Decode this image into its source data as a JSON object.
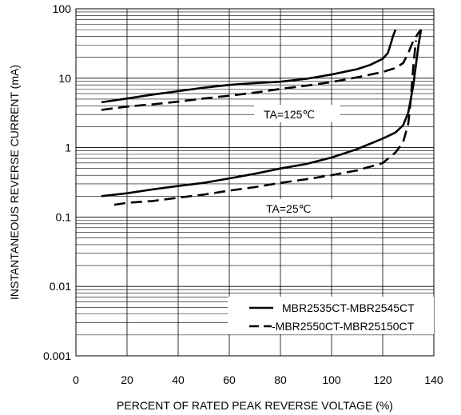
{
  "chart_data": {
    "type": "line",
    "title": "",
    "xlabel": "PERCENT OF RATED PEAK REVERSE VOLTAGE (%)",
    "ylabel": "INSTANTANEOUS REVERSE CURRENT (mA)",
    "xlim": [
      0,
      140
    ],
    "ylim": [
      0.001,
      100
    ],
    "yscale": "log",
    "x_ticks": [
      0,
      20,
      40,
      60,
      80,
      100,
      120,
      140
    ],
    "x_tick_labels": [
      "0",
      "20",
      "40",
      "60",
      "80",
      "100",
      "120",
      "140"
    ],
    "y_ticks": [
      0.001,
      0.01,
      0.1,
      1,
      10,
      100
    ],
    "y_tick_labels": [
      "0.001",
      "0.01",
      "0.1",
      "1",
      "10",
      "100"
    ],
    "grid": true,
    "legend_position": "bottom-right",
    "legend": [
      {
        "label": "MBR2535CT-MBR2545CT",
        "style": "solid"
      },
      {
        "label": "-MBR2550CT-MBR25150CT",
        "style": "dashed"
      }
    ],
    "annotations": [
      {
        "text": "TA=125℃",
        "x": 84,
        "y": 1.85
      },
      {
        "text": "TA=25℃",
        "x": 84,
        "y": 0.115
      }
    ],
    "series": [
      {
        "group": "TA=125",
        "style": "solid",
        "x": [
          10,
          20,
          30,
          40,
          50,
          60,
          70,
          80,
          90,
          100,
          110,
          115,
          120,
          122,
          123,
          124,
          125
        ],
        "y": [
          4.5,
          5.1,
          5.8,
          6.5,
          7.3,
          8.0,
          8.5,
          8.9,
          9.8,
          11.3,
          13.5,
          15.5,
          19.0,
          23.0,
          30.0,
          40.0,
          50.0
        ]
      },
      {
        "group": "TA=125",
        "style": "dashed",
        "x": [
          10,
          20,
          30,
          40,
          50,
          60,
          70,
          80,
          90,
          100,
          110,
          120,
          125,
          128,
          130,
          132,
          134,
          135
        ],
        "y": [
          3.5,
          3.9,
          4.2,
          4.6,
          5.1,
          5.6,
          6.2,
          7.0,
          7.8,
          8.8,
          10.3,
          12.3,
          14.0,
          16.5,
          23.0,
          35.0,
          45.0,
          50.0
        ]
      },
      {
        "group": "TA=25",
        "style": "solid",
        "x": [
          10,
          20,
          30,
          40,
          50,
          60,
          70,
          80,
          90,
          100,
          110,
          120,
          125,
          128,
          130,
          132,
          134,
          135
        ],
        "y": [
          0.2,
          0.22,
          0.25,
          0.28,
          0.31,
          0.36,
          0.42,
          0.5,
          0.58,
          0.72,
          0.95,
          1.35,
          1.65,
          2.1,
          3.2,
          8.0,
          30.0,
          50.0
        ]
      },
      {
        "group": "TA=25",
        "style": "dashed",
        "x": [
          15,
          20,
          30,
          40,
          50,
          60,
          70,
          80,
          90,
          100,
          110,
          120,
          125,
          128,
          130,
          131,
          132,
          133
        ],
        "y": [
          0.15,
          0.16,
          0.17,
          0.19,
          0.21,
          0.24,
          0.27,
          0.31,
          0.35,
          0.4,
          0.47,
          0.6,
          0.85,
          1.2,
          2.2,
          5.0,
          15.0,
          35.0
        ]
      }
    ]
  }
}
